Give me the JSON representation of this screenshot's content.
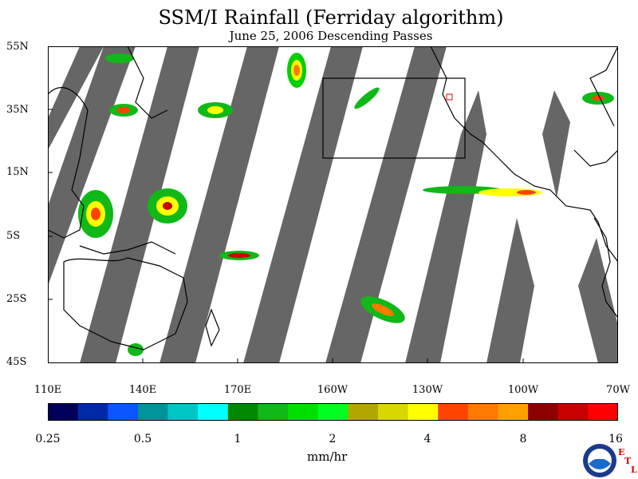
{
  "title": "SSM/I Rainfall (Ferriday algorithm)",
  "subtitle": "June 25, 2006  Descending Passes",
  "lat_labels": [
    "55N",
    "35N",
    "15N",
    "5S",
    "25S",
    "45S"
  ],
  "lon_labels": [
    "110E",
    "140E",
    "170E",
    "160W",
    "130W",
    "100W",
    "70W"
  ],
  "colorbar": {
    "colors": [
      "#00005a",
      "#0029a8",
      "#0a55ff",
      "#00949a",
      "#00c6c6",
      "#00ffff",
      "#008800",
      "#10b818",
      "#00e000",
      "#00ff20",
      "#b2a800",
      "#d8d800",
      "#ffff00",
      "#ff4400",
      "#ff7a00",
      "#ffa000",
      "#8c0000",
      "#c80000",
      "#ff0000"
    ],
    "tick_labels": [
      "0.25",
      "0.5",
      "1",
      "2",
      "4",
      "8",
      "16"
    ],
    "units": "mm/hr"
  },
  "logo": {
    "name": "NOAA",
    "mark": "ETL"
  },
  "map": {
    "lon_range": [
      "110E",
      "70W"
    ],
    "lat_range": [
      "45S",
      "55N"
    ],
    "no_data_swaths_color": "#666666",
    "box_region": "160W-125W, 18N-45N"
  }
}
